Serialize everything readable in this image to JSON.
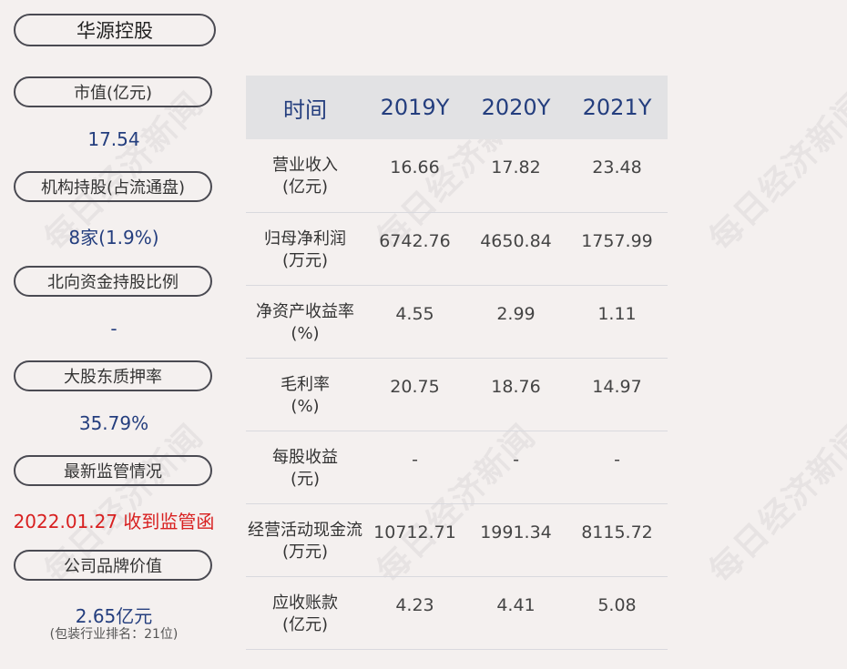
{
  "company": "华源控股",
  "watermark": "每日经济新闻",
  "left_panel": [
    {
      "label": "市值(亿元)",
      "value": "17.54"
    },
    {
      "label": "机构持股(占流通盘)",
      "value": "8家(1.9%)"
    },
    {
      "label": "北向资金持股比例",
      "value": "-"
    },
    {
      "label": "大股东质押率",
      "value": "35.79%"
    },
    {
      "label": "最新监管情况",
      "value": "2022.01.27 收到监管函"
    },
    {
      "label": "公司品牌价值",
      "value": "2.65亿元",
      "note": "(包装行业排名：21位)"
    }
  ],
  "table": {
    "headers": [
      "时间",
      "2019Y",
      "2020Y",
      "2021Y"
    ],
    "rows": [
      {
        "name": "营业收入",
        "unit": "(亿元)",
        "values": [
          "16.66",
          "17.82",
          "23.48"
        ]
      },
      {
        "name": "归母净利润",
        "unit": "(万元)",
        "values": [
          "6742.76",
          "4650.84",
          "1757.99"
        ]
      },
      {
        "name": "净资产收益率",
        "unit": "(%)",
        "values": [
          "4.55",
          "2.99",
          "1.11"
        ]
      },
      {
        "name": "毛利率",
        "unit": "(%)",
        "values": [
          "20.75",
          "18.76",
          "14.97"
        ]
      },
      {
        "name": "每股收益",
        "unit": "(元)",
        "values": [
          "-",
          "-",
          "-"
        ]
      },
      {
        "name": "经营活动现金流",
        "unit": "(万元)",
        "values": [
          "10712.71",
          "1991.34",
          "8115.72"
        ]
      },
      {
        "name": "应收账款",
        "unit": "(亿元)",
        "values": [
          "4.23",
          "4.41",
          "5.08"
        ]
      }
    ]
  },
  "colors": {
    "background": "#f4f0ef",
    "accent_blue": "#243e7e",
    "alert_red": "#d82020",
    "header_bg": "#e2e2e4"
  }
}
